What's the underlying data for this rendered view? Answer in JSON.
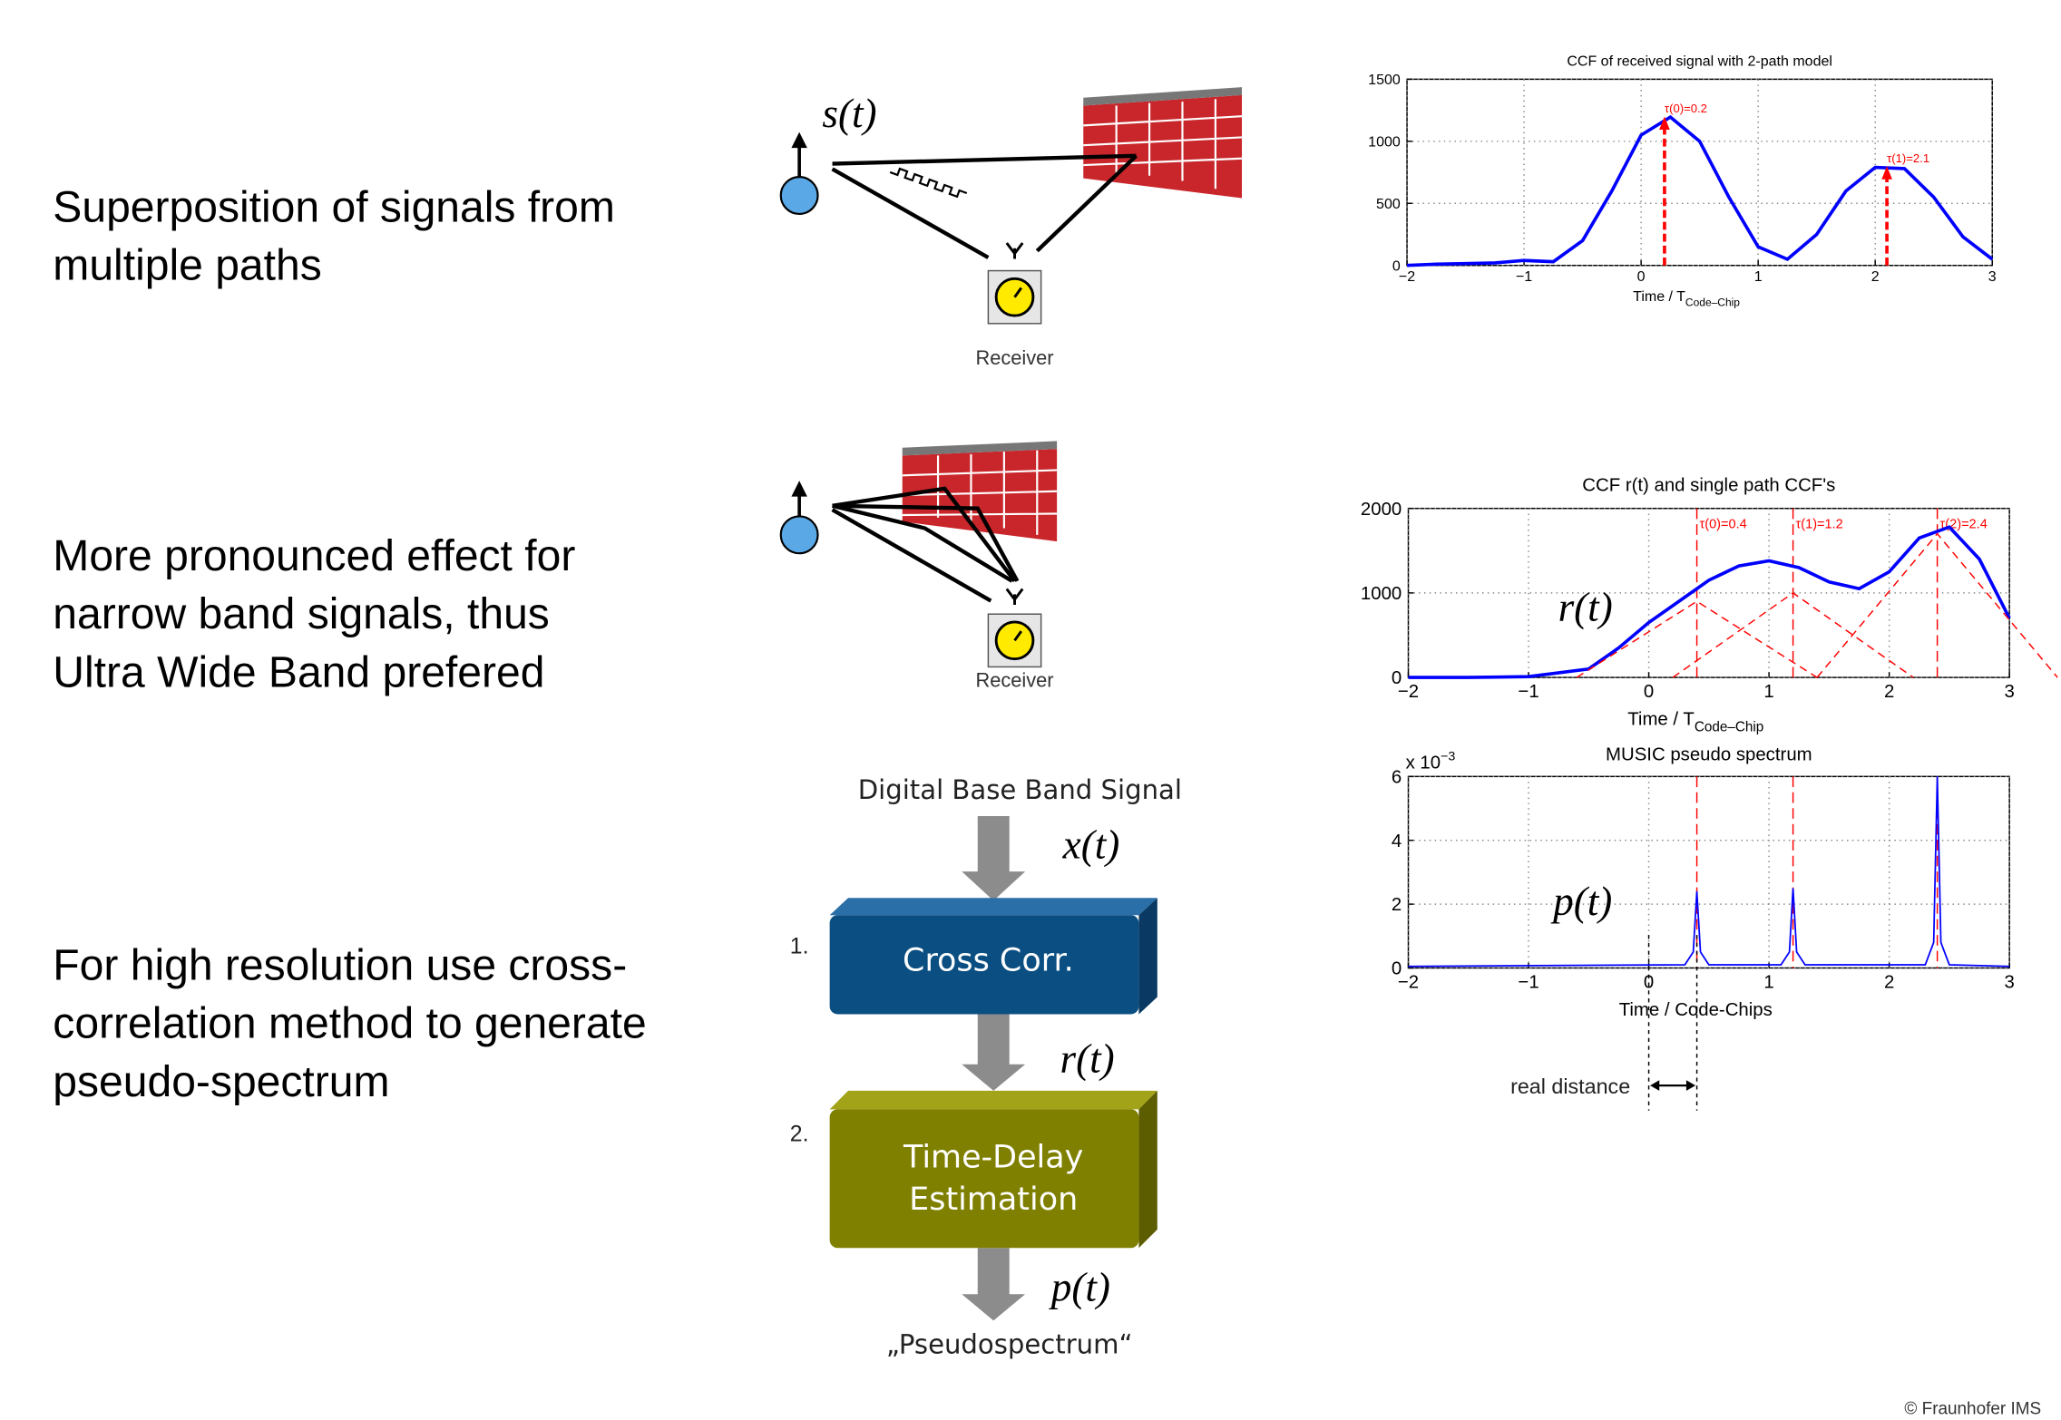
{
  "bullets": [
    {
      "lines": [
        "Superposition of signals from",
        "multiple paths"
      ]
    },
    {
      "lines": [
        "More pronounced effect for",
        "narrow band signals, thus",
        "Ultra Wide Band prefered"
      ]
    },
    {
      "lines": [
        "For high resolution use cross-",
        "correlation method to generate",
        "pseudo-spectrum"
      ]
    }
  ],
  "scenario_1": {
    "signal": "s(t)",
    "receiver": "Receiver"
  },
  "scenario_2": {
    "receiver": "Receiver"
  },
  "flow": {
    "input": "Digital Base Band Signal",
    "x_signal": "x(t)",
    "step_1": {
      "number": "1.",
      "label": "Cross Corr."
    },
    "r_signal": "r(t)",
    "step_2": {
      "number": "2.",
      "lines": [
        "Time-Delay",
        "Estimation"
      ]
    },
    "p_signal": "p(t)",
    "output": "„Pseudospectrum“"
  },
  "chart_data": [
    {
      "type": "line",
      "title": "CCF of received signal with 2-path model",
      "xlabel": "Time / T",
      "xlabel_sub": "Code–Chip",
      "grid": true,
      "xlim": [
        -2,
        3
      ],
      "ylim": [
        0,
        1500
      ],
      "xticks": [
        {
          "value": -2,
          "label": "−2"
        },
        {
          "value": -1,
          "label": "−1"
        },
        0,
        1,
        2,
        3
      ],
      "yticks": [
        0,
        500,
        1000,
        1500
      ],
      "series": [
        {
          "color": "#0000ff",
          "style": "solid",
          "x": [
            -2,
            -1.75,
            -1.5,
            -1.25,
            -1,
            -0.75,
            -0.5,
            -0.25,
            0,
            0.25,
            0.5,
            0.75,
            1,
            1.25,
            1.5,
            1.75,
            2,
            2.25,
            2.5,
            2.75,
            3
          ],
          "values": [
            0,
            10,
            15,
            20,
            40,
            30,
            200,
            600,
            1050,
            1195,
            1000,
            550,
            150,
            50,
            250,
            600,
            790,
            780,
            550,
            230,
            50
          ]
        }
      ],
      "arrows": [
        {
          "x": 0.2,
          "y": 1200,
          "label": "τ(0)=0.2"
        },
        {
          "x": 2.1,
          "y": 800,
          "label": "τ(1)=2.1"
        }
      ]
    },
    {
      "type": "line",
      "title": "CCF r(t) and single path CCF's",
      "xlabel": "Time / T",
      "xlabel_sub": "Code–Chip",
      "grid": true,
      "inline_label": "r(t)",
      "xlim": [
        -2,
        3
      ],
      "ylim": [
        0,
        2000
      ],
      "xticks": [
        {
          "value": -2,
          "label": "−2"
        },
        {
          "value": -1,
          "label": "−1"
        },
        0,
        1,
        2,
        3
      ],
      "yticks": [
        0,
        1000,
        2000
      ],
      "series": [
        {
          "color": "#0000ff",
          "style": "solid",
          "x": [
            -2,
            -1.5,
            -1,
            -0.5,
            -0.25,
            0,
            0.25,
            0.5,
            0.75,
            1,
            1.25,
            1.5,
            1.75,
            2,
            2.25,
            2.5,
            2.75,
            3
          ],
          "values": [
            0,
            0,
            10,
            100,
            350,
            650,
            900,
            1150,
            1320,
            1380,
            1300,
            1130,
            1050,
            1250,
            1650,
            1780,
            1400,
            700
          ]
        },
        {
          "color": "#ff0000",
          "style": "dashed",
          "x": [
            -0.6,
            0.4,
            1.4
          ],
          "values": [
            0,
            900,
            0
          ]
        },
        {
          "color": "#ff0000",
          "style": "dashed",
          "x": [
            0.2,
            1.2,
            2.2
          ],
          "values": [
            0,
            1000,
            0
          ]
        },
        {
          "color": "#ff0000",
          "style": "dashed",
          "x": [
            1.4,
            2.4,
            3.4
          ],
          "values": [
            0,
            1700,
            0
          ]
        }
      ],
      "vlines": [
        {
          "x": 0.4,
          "label": "τ(0)=0.4"
        },
        {
          "x": 1.2,
          "label": "τ(1)=1.2"
        },
        {
          "x": 2.4,
          "label": "τ(2)=2.4"
        }
      ]
    },
    {
      "type": "line",
      "title": "MUSIC pseudo spectrum",
      "xlabel": "Time / Code-Chips",
      "grid": true,
      "inline_label": "p(t)",
      "y_multiplier": "x 10",
      "y_multiplier_exp": "−3",
      "xlim": [
        -2,
        3
      ],
      "ylim": [
        0,
        6
      ],
      "xticks": [
        {
          "value": -2,
          "label": "−2"
        },
        {
          "value": -1,
          "label": "−1"
        },
        0,
        1,
        2,
        3
      ],
      "yticks": [
        0,
        2,
        4,
        6
      ],
      "series": [
        {
          "color": "#0000ff",
          "style": "solid",
          "x": [
            -2,
            0.3,
            0.37,
            0.4,
            0.43,
            0.5,
            1.1,
            1.17,
            1.2,
            1.23,
            1.3,
            2.3,
            2.37,
            2.4,
            2.43,
            2.5,
            3
          ],
          "values": [
            0.05,
            0.1,
            0.5,
            2.4,
            0.5,
            0.1,
            0.1,
            0.5,
            2.5,
            0.5,
            0.1,
            0.1,
            0.8,
            6,
            0.8,
            0.1,
            0.05
          ]
        }
      ],
      "vlines": [
        {
          "x": 0.4
        },
        {
          "x": 1.2
        },
        {
          "x": 2.4
        }
      ],
      "annotation": {
        "text": "real distance",
        "x": [
          0,
          0.4
        ]
      }
    }
  ],
  "footer": "© Fraunhofer IMS"
}
